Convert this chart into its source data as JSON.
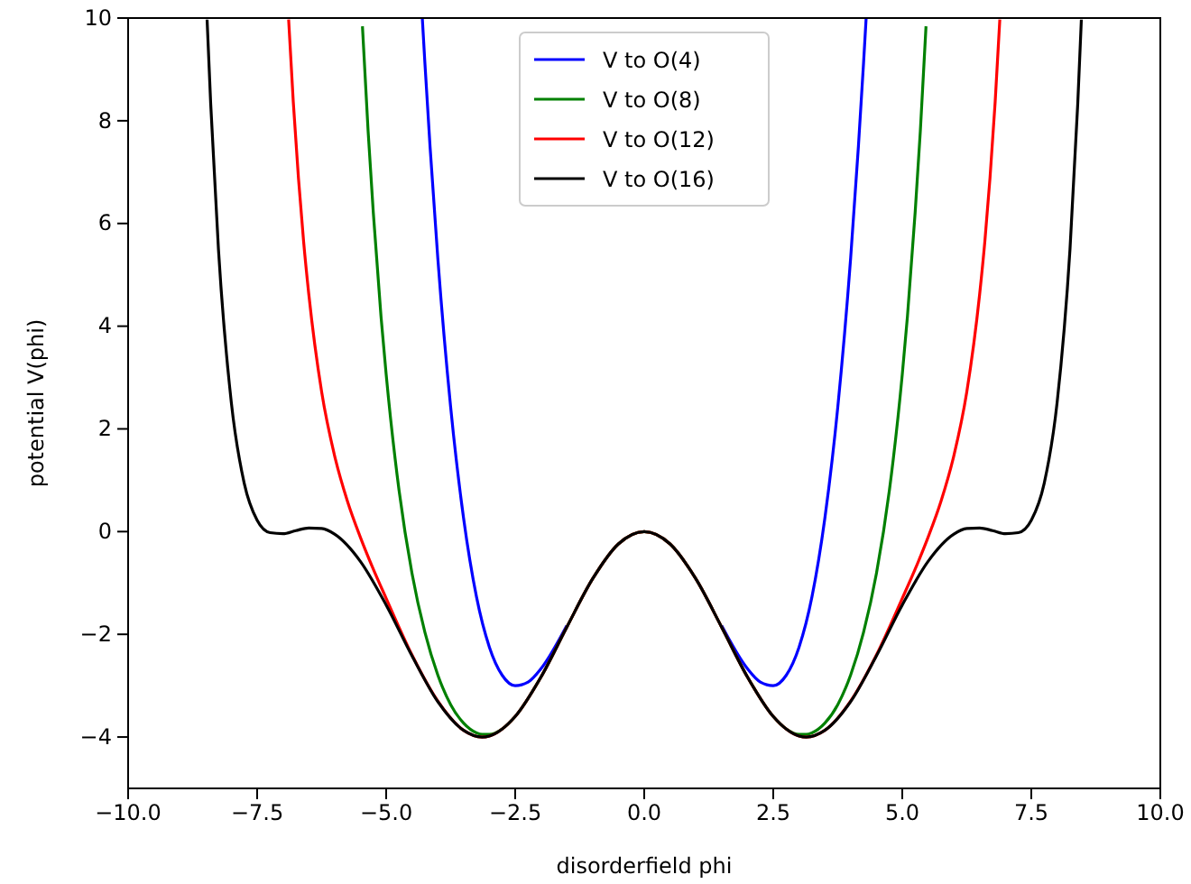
{
  "chart_data": {
    "type": "line",
    "xlabel": "disorderfield phi",
    "ylabel": "potential V(phi)",
    "xlim": [
      -10,
      10
    ],
    "ylim": [
      -5,
      10
    ],
    "xticks": [
      {
        "value": -10,
        "label": "−10.0"
      },
      {
        "value": -7.5,
        "label": "−7.5"
      },
      {
        "value": -5,
        "label": "−5.0"
      },
      {
        "value": -2.5,
        "label": "−2.5"
      },
      {
        "value": 0,
        "label": "0.0"
      },
      {
        "value": 2.5,
        "label": "2.5"
      },
      {
        "value": 5,
        "label": "5.0"
      },
      {
        "value": 7.5,
        "label": "7.5"
      },
      {
        "value": 10,
        "label": "10.0"
      }
    ],
    "yticks": [
      {
        "value": -4,
        "label": "−4"
      },
      {
        "value": -2,
        "label": "−2"
      },
      0,
      2,
      4,
      6,
      8,
      10
    ],
    "grid": false,
    "legend": "top",
    "marker": "none",
    "line_style": "solid",
    "series": [
      {
        "name": "V to O(4)",
        "color": "#0000ff",
        "x": [
          -4.3,
          -4.25,
          -4.15,
          -4,
          -3.75,
          -3.5,
          -3.25,
          -3,
          -2.75,
          -2.5,
          -2.25,
          -2,
          -1.5,
          -1,
          -0.5,
          0,
          0.5,
          1,
          1.5,
          2,
          2.25,
          2.5,
          2.75,
          3,
          3.25,
          3.5,
          3.75,
          4,
          4.15,
          4.25,
          4.3
        ],
        "values": [
          10.0,
          9.13,
          7.5,
          5.33,
          2.42,
          0.26,
          -1.27,
          -2.25,
          -2.8,
          -3.0,
          -2.93,
          -2.67,
          -1.83,
          null,
          null,
          null,
          null,
          null,
          -1.83,
          -2.67,
          -2.93,
          -3.0,
          -2.8,
          -2.25,
          -1.27,
          0.26,
          2.42,
          5.33,
          7.5,
          9.13,
          10.0
        ]
      },
      {
        "name": "V to O(8)",
        "color": "#008000",
        "x": [
          -5.46,
          -5.35,
          -5.25,
          -5.1,
          -5,
          -4.75,
          -4.5,
          -4.25,
          -4,
          -3.75,
          -3.5,
          -3.25,
          -3.14,
          -3,
          -2.75,
          -2.5,
          -2,
          -1.5,
          -1,
          -0.5,
          0,
          0.5,
          1,
          1.5,
          2,
          2.5,
          2.75,
          3,
          3.14,
          3.25,
          3.5,
          3.75,
          4,
          4.25,
          4.5,
          4.75,
          5,
          5.1,
          5.25,
          5.35,
          5.46
        ],
        "values": [
          9.84,
          7.8,
          6.22,
          4.19,
          3.06,
          0.8,
          -0.81,
          -1.96,
          -2.79,
          -3.37,
          -3.73,
          -3.92,
          -3.95,
          -3.95,
          -3.84,
          -3.6,
          -2.83,
          -1.86,
          -0.92,
          -0.24,
          0,
          -0.24,
          -0.92,
          -1.86,
          -2.83,
          -3.6,
          -3.84,
          -3.95,
          -3.95,
          -3.92,
          -3.73,
          -3.37,
          -2.79,
          -1.96,
          -0.81,
          0.8,
          3.06,
          4.19,
          6.22,
          7.8,
          9.84
        ]
      },
      {
        "name": "V to O(12)",
        "color": "#ff0000",
        "x": [
          -6.89,
          -6.8,
          -6.7,
          -6.6,
          -6.5,
          -6.25,
          -6,
          -5.75,
          -5.5,
          -5.25,
          -5,
          -4.5,
          -4,
          -3.5,
          -3.14,
          -3,
          -2.5,
          -2,
          -1.5,
          -1,
          -0.5,
          0,
          0.5,
          1,
          1.5,
          2,
          2.5,
          3,
          3.14,
          3.5,
          4,
          4.5,
          5,
          5.25,
          5.5,
          5.75,
          6,
          6.25,
          6.5,
          6.6,
          6.7,
          6.8,
          6.89
        ],
        "values": [
          9.97,
          8.37,
          6.89,
          5.65,
          4.63,
          2.72,
          1.48,
          0.59,
          -0.11,
          -0.73,
          -1.3,
          -2.4,
          -3.3,
          -3.87,
          -4.0,
          -3.98,
          -3.6,
          -2.83,
          -1.86,
          -0.92,
          -0.24,
          0,
          -0.24,
          -0.92,
          -1.86,
          -2.83,
          -3.6,
          -3.98,
          -4.0,
          -3.87,
          -3.3,
          -2.4,
          -1.3,
          -0.73,
          -0.11,
          0.59,
          1.48,
          2.72,
          4.63,
          5.65,
          6.89,
          8.37,
          9.97
        ]
      },
      {
        "name": "V to O(16)",
        "color": "#000000",
        "x": [
          -8.47,
          -8.4,
          -8.25,
          -8,
          -7.75,
          -7.5,
          -7.25,
          -7,
          -6.75,
          -6.5,
          -6.25,
          -6,
          -5.5,
          -5,
          -4.5,
          -4,
          -3.5,
          -3.14,
          -3,
          -2.5,
          -2,
          -1.5,
          -1,
          -0.5,
          0,
          0.5,
          1,
          1.5,
          2,
          2.5,
          3,
          3.14,
          3.5,
          4,
          4.5,
          5,
          5.5,
          6,
          6.25,
          6.5,
          6.75,
          7,
          7.25,
          7.5,
          7.75,
          8,
          8.25,
          8.4,
          8.47
        ],
        "values": [
          9.97,
          8.33,
          5.5,
          2.51,
          0.94,
          0.22,
          -0.02,
          -0.04,
          0.02,
          0.07,
          0.06,
          -0.05,
          -0.58,
          -1.43,
          -2.42,
          -3.31,
          -3.87,
          -4.0,
          -3.98,
          -3.6,
          -2.83,
          -1.86,
          -0.92,
          -0.24,
          0,
          -0.24,
          -0.92,
          -1.86,
          -2.83,
          -3.6,
          -3.98,
          -4.0,
          -3.87,
          -3.31,
          -2.42,
          -1.43,
          -0.58,
          -0.05,
          0.06,
          0.07,
          0.02,
          -0.04,
          -0.02,
          0.22,
          0.94,
          2.51,
          5.5,
          8.33,
          9.97
        ]
      }
    ]
  }
}
